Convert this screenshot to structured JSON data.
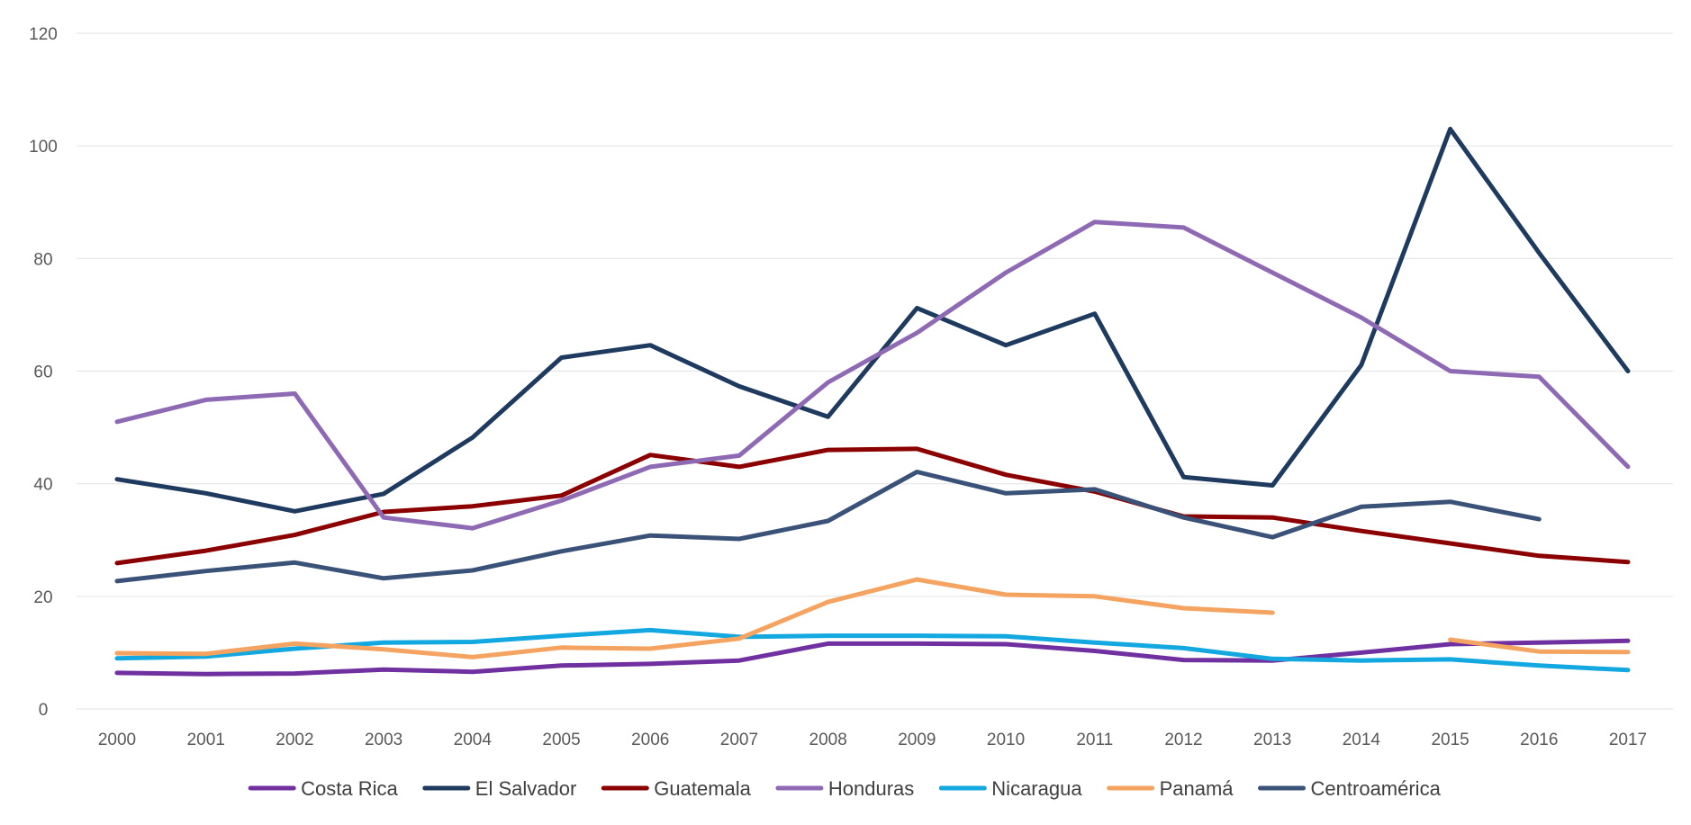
{
  "chart_data": {
    "type": "line",
    "title": "",
    "xlabel": "",
    "ylabel": "",
    "ylim": [
      0,
      120
    ],
    "yticks": [
      0,
      20,
      40,
      60,
      80,
      100,
      120
    ],
    "grid": true,
    "legend_position": "bottom",
    "categories": [
      "2000",
      "2001",
      "2002",
      "2003",
      "2004",
      "2005",
      "2006",
      "2007",
      "2008",
      "2009",
      "2010",
      "2011",
      "2012",
      "2013",
      "2014",
      "2015",
      "2016",
      "2017"
    ],
    "series": [
      {
        "name": "Costa Rica",
        "color": "#7030a0",
        "values": [
          6.4,
          6.2,
          6.3,
          7.0,
          6.6,
          7.7,
          8.0,
          8.6,
          11.6,
          11.6,
          11.5,
          10.3,
          8.7,
          8.6,
          10.0,
          11.5,
          11.8,
          12.1
        ]
      },
      {
        "name": "El Salvador",
        "color": "#1f3a5f",
        "values": [
          40.8,
          38.3,
          35.1,
          38.2,
          48.2,
          62.4,
          64.6,
          57.3,
          51.9,
          71.2,
          64.6,
          70.2,
          41.2,
          39.7,
          61.1,
          103.0,
          81.0,
          60.0
        ]
      },
      {
        "name": "Guatemala",
        "color": "#8b0000",
        "values": [
          25.9,
          28.1,
          30.9,
          35.0,
          36.0,
          37.9,
          45.1,
          43.0,
          46.0,
          46.2,
          41.6,
          38.6,
          34.2,
          34.0,
          31.6,
          29.4,
          27.2,
          26.1
        ]
      },
      {
        "name": "Honduras",
        "color": "#8f6ab4",
        "values": [
          51.0,
          54.9,
          56.0,
          34.0,
          32.1,
          37.0,
          43.0,
          45.0,
          58.0,
          66.8,
          77.5,
          86.5,
          85.5,
          77.5,
          69.5,
          60.0,
          59.0,
          43.0
        ]
      },
      {
        "name": "Nicaragua",
        "color": "#13a8e0",
        "values": [
          9.0,
          9.3,
          10.7,
          11.8,
          11.9,
          13.0,
          14.0,
          12.8,
          13.0,
          13.0,
          12.9,
          11.8,
          10.8,
          8.9,
          8.6,
          8.8,
          7.7,
          6.9
        ]
      },
      {
        "name": "Panamá",
        "color": "#f4a460",
        "values": [
          9.9,
          9.8,
          11.6,
          10.6,
          9.2,
          10.9,
          10.7,
          12.5,
          19.0,
          23.0,
          20.3,
          20.0,
          17.9,
          17.1,
          null,
          12.3,
          10.2,
          10.1
        ]
      },
      {
        "name": "Centroamérica",
        "color": "#3b5278",
        "values": [
          22.7,
          24.5,
          26.0,
          23.2,
          24.6,
          28.0,
          30.8,
          30.2,
          33.4,
          42.1,
          38.3,
          39.0,
          34.0,
          30.5,
          35.9,
          36.8,
          33.7,
          null
        ]
      }
    ]
  }
}
